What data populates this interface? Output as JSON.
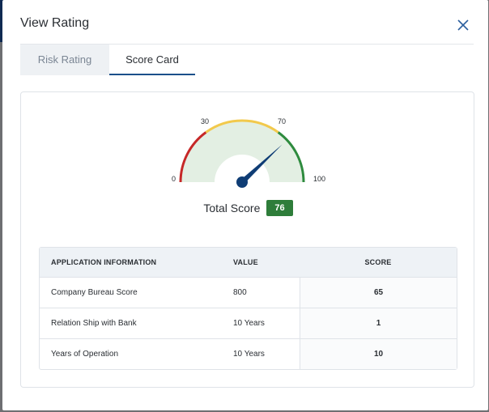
{
  "modal": {
    "title": "View Rating",
    "close_icon": "close-icon"
  },
  "tabs": [
    {
      "label": "Risk Rating",
      "active": false
    },
    {
      "label": "Score Card",
      "active": true
    }
  ],
  "gauge": {
    "min_label": "0",
    "mid_low_label": "30",
    "mid_high_label": "70",
    "max_label": "100",
    "value": 76,
    "colors": {
      "low": "#c62828",
      "mid": "#f2c94c",
      "high": "#2e8b3e",
      "fill": "#e3efe3",
      "needle": "#0f3d75"
    }
  },
  "total": {
    "label": "Total Score",
    "value": "76"
  },
  "table": {
    "headers": [
      "APPLICATION INFORMATION",
      "VALUE",
      "SCORE"
    ],
    "rows": [
      [
        "Company Bureau Score",
        "800",
        "65"
      ],
      [
        "Relation Ship with Bank",
        "10 Years",
        "1"
      ],
      [
        "Years of Operation",
        "10 Years",
        "10"
      ]
    ]
  }
}
